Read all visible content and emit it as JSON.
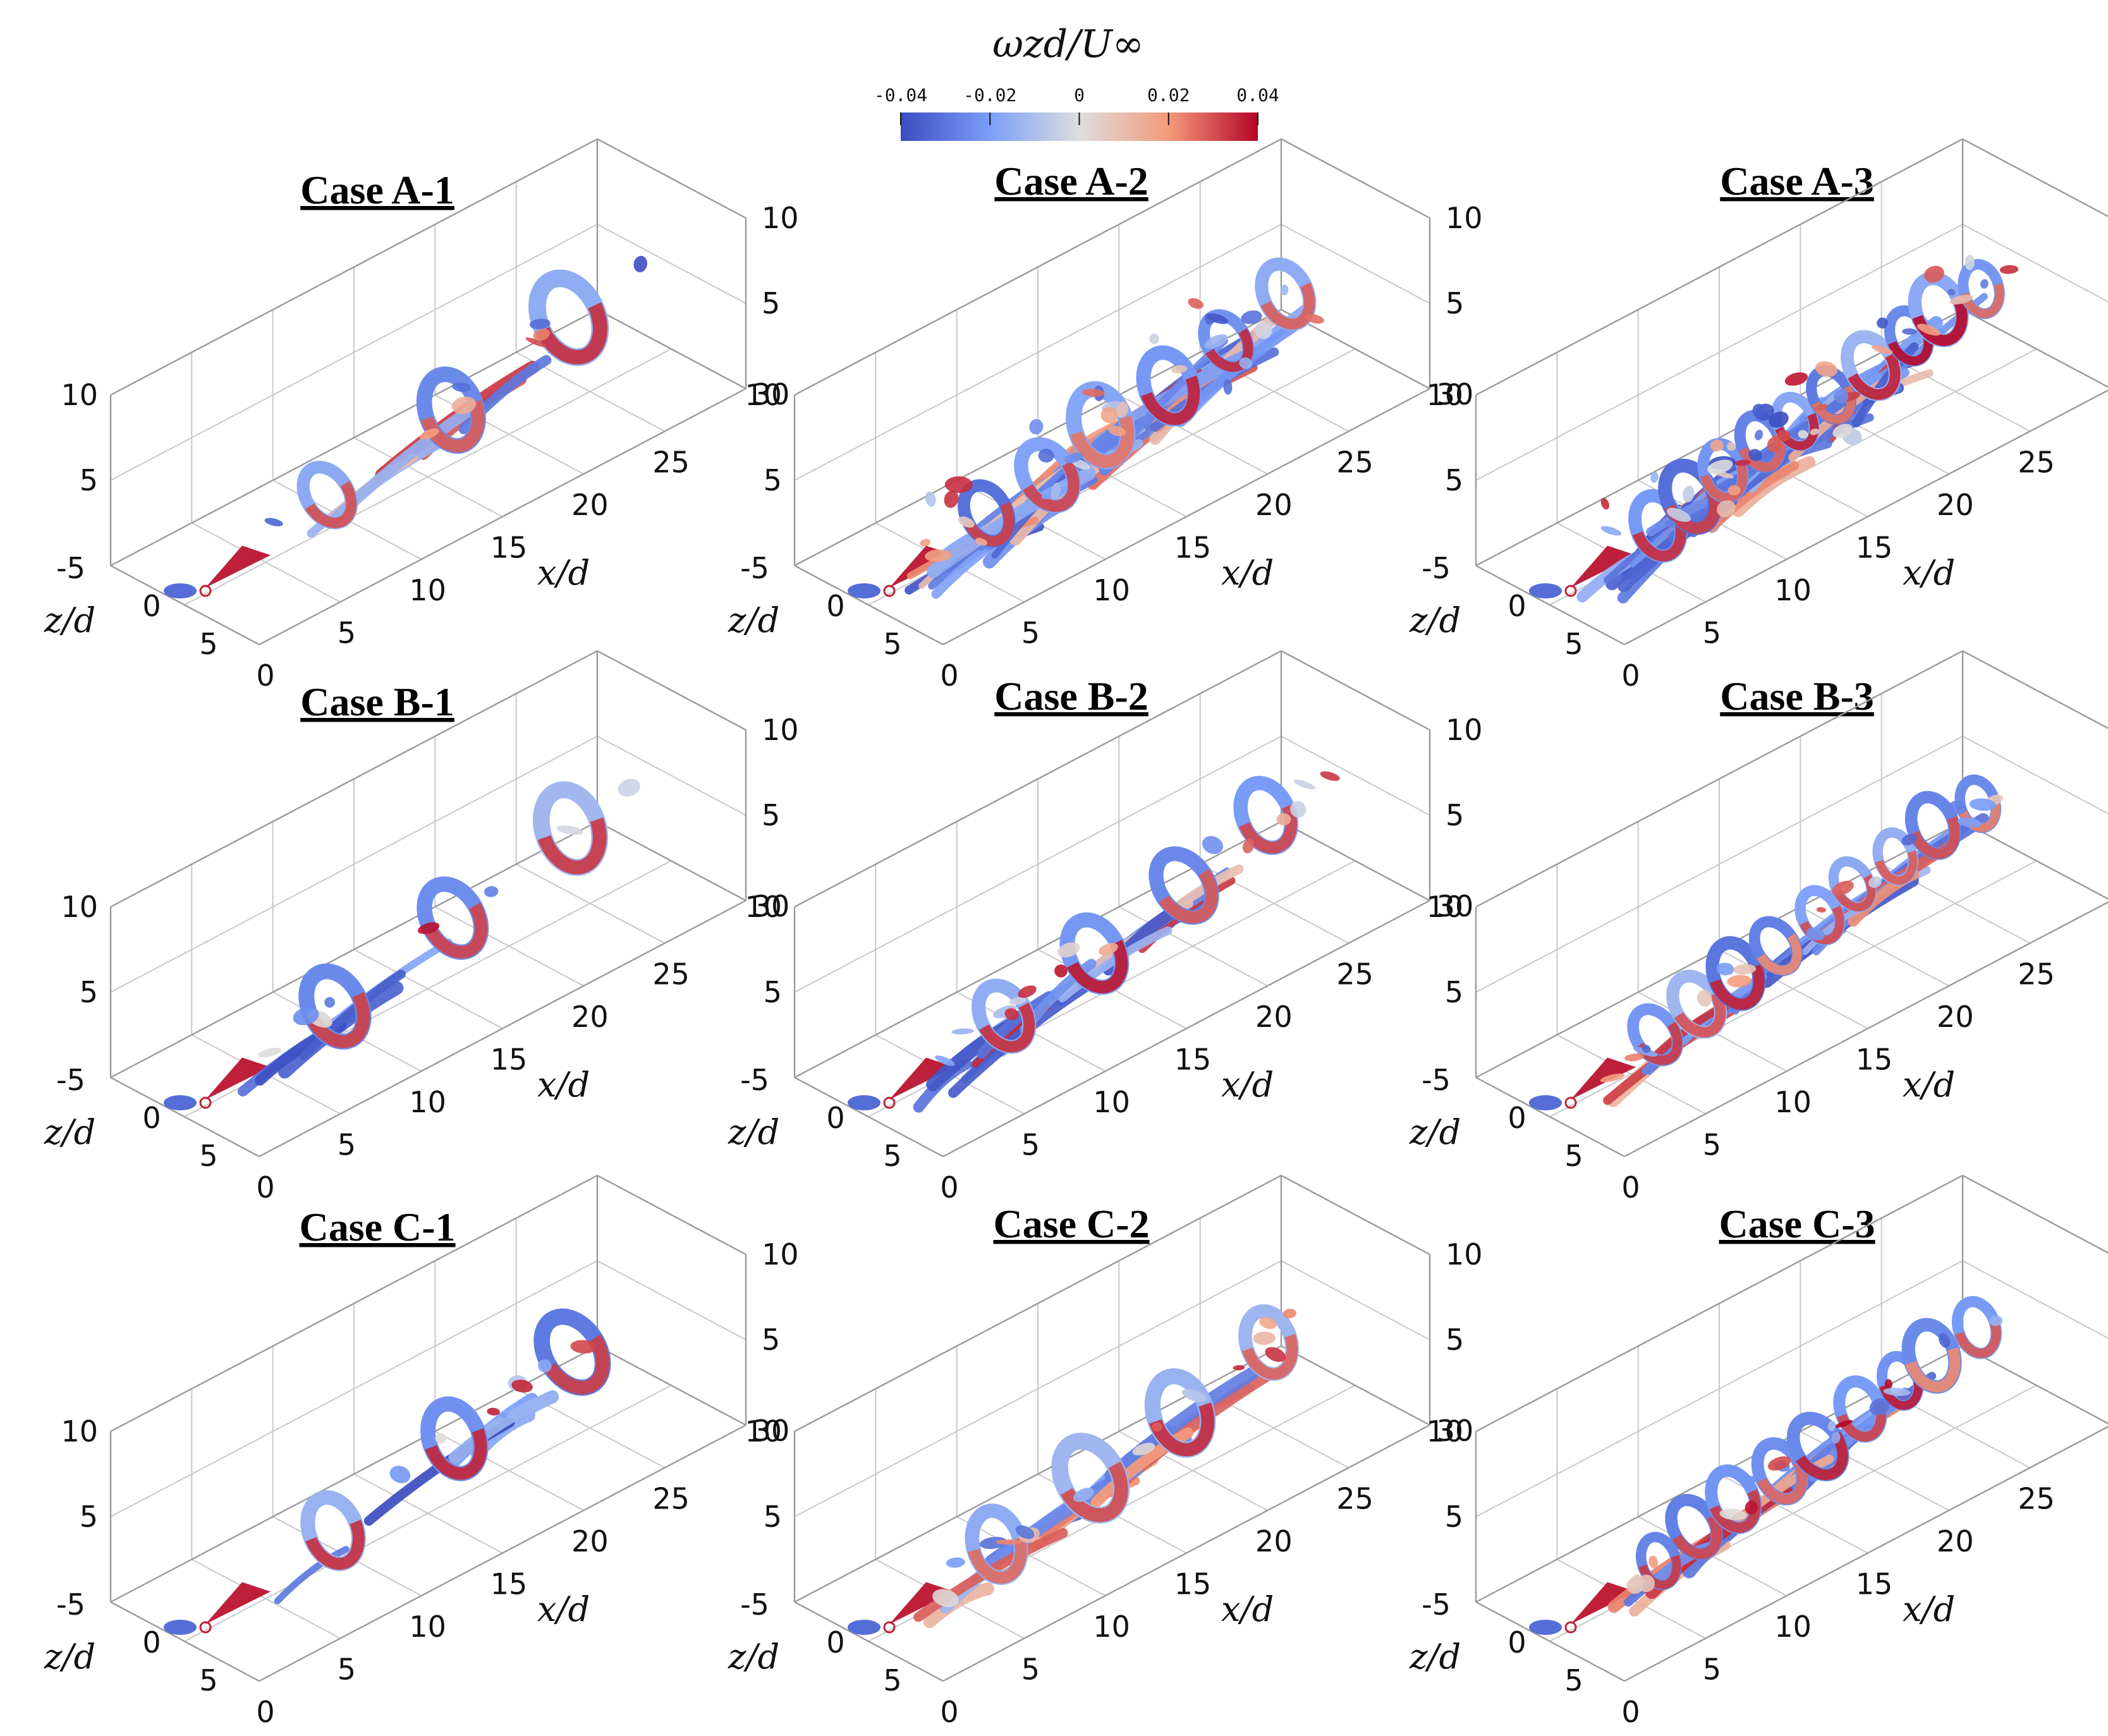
{
  "colorbar": {
    "title": "ωzd/U∞",
    "ticks": [
      "-0.04",
      "-0.02",
      "0",
      "0.02",
      "0.04"
    ],
    "tick_values": [
      -0.04,
      -0.02,
      0,
      0.02,
      0.04
    ],
    "range": [
      -0.04,
      0.04
    ],
    "colors": {
      "negative": "#2f4fbf",
      "neutral": "#e6e6e6",
      "positive": "#c0152a"
    }
  },
  "axes": {
    "x_label": "x/d",
    "z_label": "z/d",
    "x_ticks": [
      "0",
      "5",
      "10",
      "15",
      "20",
      "25",
      "30"
    ],
    "y_ticks": [
      "5",
      "10"
    ],
    "z_ticks": [
      "-5",
      "0",
      "5"
    ]
  },
  "panels": [
    {
      "title": "Case A-1",
      "pattern": "rings-sparse"
    },
    {
      "title": "Case A-2",
      "pattern": "turbulent"
    },
    {
      "title": "Case A-3",
      "pattern": "turbulent-dense"
    },
    {
      "title": "Case B-1",
      "pattern": "rings-sparse"
    },
    {
      "title": "Case B-2",
      "pattern": "rings-medium"
    },
    {
      "title": "Case B-3",
      "pattern": "rings-dense"
    },
    {
      "title": "Case C-1",
      "pattern": "rings-sparse"
    },
    {
      "title": "Case C-2",
      "pattern": "rings-medium"
    },
    {
      "title": "Case C-3",
      "pattern": "rings-dense"
    }
  ]
}
